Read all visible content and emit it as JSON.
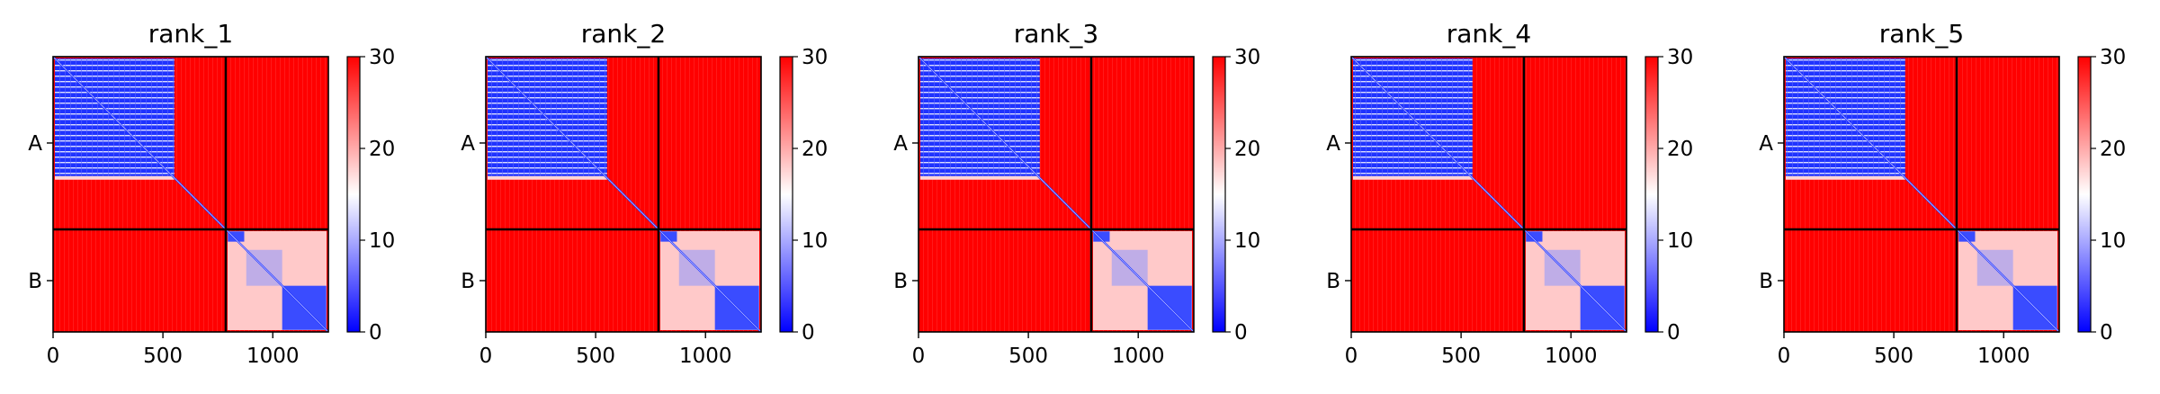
{
  "figure": {
    "xticks": [
      "0",
      "500",
      "1000"
    ],
    "colorbar_ticks": [
      "0",
      "10",
      "20",
      "30"
    ]
  },
  "chart_data": [
    {
      "type": "heatmap",
      "title": "rank_1",
      "xlim": [
        0,
        1253
      ],
      "xticks": [
        0,
        500,
        1000
      ],
      "chain_labels": [
        "A",
        "B"
      ],
      "chain_boundary": 786,
      "colorbar": {
        "range": [
          0,
          30
        ],
        "ticks": [
          0,
          10,
          20,
          30
        ],
        "colormap": "bwr",
        "low_color": "#0000ff",
        "mid_color": "#ffffff",
        "high_color": "#ff0000"
      },
      "matrix_summary": {
        "domain_A": [
          0,
          560
        ],
        "domain_B": [
          786,
          1253
        ],
        "within_domain_value": 5,
        "between_value": 30
      }
    },
    {
      "type": "heatmap",
      "title": "rank_2",
      "xlim": [
        0,
        1253
      ],
      "xticks": [
        0,
        500,
        1000
      ],
      "chain_labels": [
        "A",
        "B"
      ],
      "chain_boundary": 786,
      "colorbar": {
        "range": [
          0,
          30
        ],
        "ticks": [
          0,
          10,
          20,
          30
        ],
        "colormap": "bwr",
        "low_color": "#0000ff",
        "mid_color": "#ffffff",
        "high_color": "#ff0000"
      },
      "matrix_summary": {
        "domain_A": [
          0,
          560
        ],
        "domain_B": [
          786,
          1253
        ],
        "within_domain_value": 5,
        "between_value": 30
      }
    },
    {
      "type": "heatmap",
      "title": "rank_3",
      "xlim": [
        0,
        1253
      ],
      "xticks": [
        0,
        500,
        1000
      ],
      "chain_labels": [
        "A",
        "B"
      ],
      "chain_boundary": 786,
      "colorbar": {
        "range": [
          0,
          30
        ],
        "ticks": [
          0,
          10,
          20,
          30
        ],
        "colormap": "bwr",
        "low_color": "#0000ff",
        "mid_color": "#ffffff",
        "high_color": "#ff0000"
      },
      "matrix_summary": {
        "domain_A": [
          0,
          560
        ],
        "domain_B": [
          786,
          1253
        ],
        "within_domain_value": 5,
        "between_value": 30
      }
    },
    {
      "type": "heatmap",
      "title": "rank_4",
      "xlim": [
        0,
        1253
      ],
      "xticks": [
        0,
        500,
        1000
      ],
      "chain_labels": [
        "A",
        "B"
      ],
      "chain_boundary": 786,
      "colorbar": {
        "range": [
          0,
          30
        ],
        "ticks": [
          0,
          10,
          20,
          30
        ],
        "colormap": "bwr",
        "low_color": "#0000ff",
        "mid_color": "#ffffff",
        "high_color": "#ff0000"
      },
      "matrix_summary": {
        "domain_A": [
          0,
          560
        ],
        "domain_B": [
          786,
          1253
        ],
        "within_domain_value": 5,
        "between_value": 30
      }
    },
    {
      "type": "heatmap",
      "title": "rank_5",
      "xlim": [
        0,
        1253
      ],
      "xticks": [
        0,
        500,
        1000
      ],
      "chain_labels": [
        "A",
        "B"
      ],
      "chain_boundary": 786,
      "colorbar": {
        "range": [
          0,
          30
        ],
        "ticks": [
          0,
          10,
          20,
          30
        ],
        "colormap": "bwr",
        "low_color": "#0000ff",
        "mid_color": "#ffffff",
        "high_color": "#ff0000"
      },
      "matrix_summary": {
        "domain_A": [
          0,
          560
        ],
        "domain_B": [
          786,
          1253
        ],
        "within_domain_value": 5,
        "between_value": 30
      }
    }
  ]
}
